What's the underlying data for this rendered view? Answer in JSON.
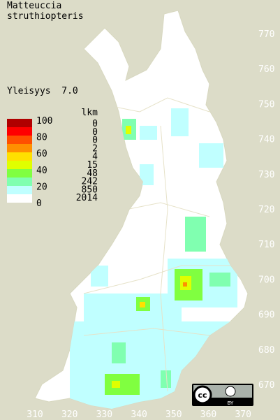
{
  "title": [
    "Matteuccia",
    "struthiopteris"
  ],
  "index_label": "Yleisyys  7.0",
  "legend": {
    "scale_labels": [
      "100",
      "80",
      "60",
      "40",
      "20",
      "0"
    ],
    "count_header": "lkm",
    "counts": [
      "0",
      "0",
      "0",
      "2",
      "4",
      "15",
      "48",
      "242",
      "850",
      "2014"
    ],
    "colors": [
      "#b00000",
      "#ff0000",
      "#ff5000",
      "#ff9000",
      "#ffe000",
      "#e0ff00",
      "#80ff40",
      "#80ffb0",
      "#c0ffff",
      "#ffffff"
    ]
  },
  "grid": {
    "north_labels": [
      "770",
      "760",
      "750",
      "740",
      "730",
      "720",
      "710",
      "700",
      "690",
      "680",
      "670"
    ],
    "east_labels": [
      "310",
      "320",
      "330",
      "340",
      "350",
      "360",
      "370"
    ]
  },
  "license": "BY"
}
